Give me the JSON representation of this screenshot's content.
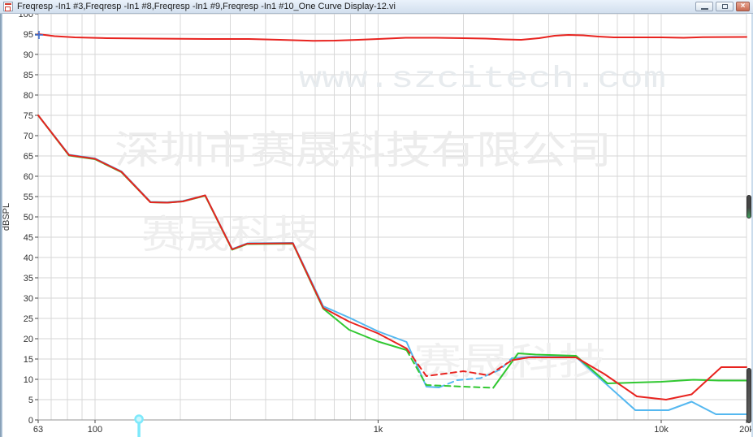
{
  "window": {
    "title": "Freqresp -In1 #3,Freqresp -In1 #8,Freqresp -In1 #9,Freqresp -In1 #10_One Curve Display-12.vi",
    "icon": "labview-vi-icon",
    "buttons": {
      "minimize": "minimize",
      "restore": "restore",
      "close": "close"
    }
  },
  "watermarks": {
    "url": "www.szcitech.com",
    "company": "深圳市赛晟科技有限公司",
    "brand_upper": "赛晟科技",
    "brand_lower": "赛晟科技"
  },
  "chart_data": {
    "type": "line",
    "title": "",
    "xlabel": "",
    "ylabel": "dBSPL",
    "x_scale": "log",
    "xlim": [
      63,
      20000
    ],
    "ylim": [
      0,
      100
    ],
    "y_tick_step": 5,
    "grid": true,
    "legend_position": "none",
    "x_ticks": [
      {
        "value": 63,
        "label": "63"
      },
      {
        "value": 100,
        "label": "100"
      },
      {
        "value": 1000,
        "label": "1k"
      },
      {
        "value": 10000,
        "label": "10k"
      },
      {
        "value": 20000,
        "label": "20k"
      }
    ],
    "cursor": {
      "freq": 143,
      "color": "#7ee9fb"
    },
    "start_marker": {
      "freq": 63,
      "db": 95,
      "color": "#3f6fd0"
    },
    "series": [
      {
        "name": "Freqresp -In1 #10",
        "color": "#55b8f0",
        "segments": [
          {
            "style": "solid",
            "points": [
              [
                63,
                75
              ],
              [
                81,
                65.3
              ],
              [
                100,
                64.4
              ],
              [
                124,
                61.2
              ],
              [
                157,
                53.7
              ],
              [
                180,
                53.6
              ],
              [
                204,
                53.9
              ],
              [
                245,
                55.3
              ],
              [
                305,
                42.1
              ],
              [
                345,
                43.5
              ],
              [
                500,
                43.6
              ],
              [
                640,
                28
              ],
              [
                790,
                25.2
              ],
              [
                1000,
                21.8
              ],
              [
                1260,
                19.2
              ],
              [
                1480,
                8.2
              ],
              [
                1640,
                8
              ]
            ]
          },
          {
            "style": "dashed",
            "points": [
              [
                1640,
                8
              ],
              [
                1900,
                9.8
              ],
              [
                2300,
                10.3
              ],
              [
                2700,
                12.4
              ],
              [
                2970,
                15.2
              ]
            ]
          },
          {
            "style": "solid",
            "points": [
              [
                2970,
                15.2
              ],
              [
                3500,
                15.6
              ],
              [
                5000,
                15.5
              ],
              [
                8100,
                2.4
              ],
              [
                10600,
                2.4
              ],
              [
                12800,
                4.5
              ],
              [
                15600,
                1.4
              ],
              [
                20000,
                1.4
              ]
            ]
          }
        ]
      },
      {
        "name": "Freqresp -In1 #9",
        "color": "#31c831",
        "segments": [
          {
            "style": "solid",
            "points": [
              [
                63,
                75
              ],
              [
                81,
                65.1
              ],
              [
                100,
                64.2
              ],
              [
                124,
                61
              ],
              [
                157,
                53.6
              ],
              [
                180,
                53.5
              ],
              [
                204,
                53.8
              ],
              [
                245,
                55.2
              ],
              [
                305,
                41.9
              ],
              [
                345,
                43.3
              ],
              [
                500,
                43.4
              ],
              [
                640,
                27.4
              ],
              [
                790,
                22.2
              ],
              [
                1000,
                19.3
              ],
              [
                1260,
                17.2
              ]
            ]
          },
          {
            "style": "dashed",
            "points": [
              [
                1260,
                17.2
              ],
              [
                1480,
                8.6
              ],
              [
                2000,
                8.2
              ],
              [
                2550,
                7.9
              ]
            ]
          },
          {
            "style": "solid",
            "points": [
              [
                2550,
                7.9
              ],
              [
                3120,
                16.4
              ],
              [
                3600,
                16.1
              ],
              [
                5000,
                15.8
              ],
              [
                6460,
                9
              ],
              [
                8000,
                9.2
              ],
              [
                10000,
                9.4
              ],
              [
                13000,
                9.9
              ],
              [
                16000,
                9.7
              ],
              [
                20000,
                9.7
              ]
            ]
          }
        ]
      },
      {
        "name": "Freqresp -In1 #8",
        "color": "#e8231f",
        "segments": [
          {
            "style": "solid",
            "points": [
              [
                63,
                75
              ],
              [
                81,
                65.2
              ],
              [
                100,
                64.3
              ],
              [
                124,
                61.1
              ],
              [
                157,
                53.6
              ],
              [
                180,
                53.5
              ],
              [
                204,
                53.8
              ],
              [
                245,
                55.3
              ],
              [
                305,
                42
              ],
              [
                345,
                43.4
              ],
              [
                500,
                43.5
              ],
              [
                640,
                27.6
              ],
              [
                790,
                24.2
              ],
              [
                1000,
                21.3
              ],
              [
                1260,
                17.6
              ]
            ]
          },
          {
            "style": "dashed",
            "points": [
              [
                1260,
                17.6
              ],
              [
                1480,
                10.8
              ],
              [
                2000,
                12
              ],
              [
                2450,
                11
              ],
              [
                2970,
                14.7
              ]
            ]
          },
          {
            "style": "solid",
            "points": [
              [
                2970,
                14.7
              ],
              [
                3400,
                15.4
              ],
              [
                5000,
                15.4
              ],
              [
                6300,
                11.3
              ],
              [
                8200,
                5.8
              ],
              [
                10400,
                5
              ],
              [
                12800,
                6.3
              ],
              [
                16300,
                13
              ],
              [
                20000,
                13
              ]
            ]
          }
        ]
      },
      {
        "name": "Freqresp -In1 #3",
        "color": "#e8231f",
        "segments": [
          {
            "style": "solid",
            "points": [
              [
                63,
                95
              ],
              [
                72,
                94.5
              ],
              [
                85,
                94.2
              ],
              [
                110,
                94
              ],
              [
                160,
                93.9
              ],
              [
                250,
                93.8
              ],
              [
                350,
                93.8
              ],
              [
                450,
                93.6
              ],
              [
                590,
                93.35
              ],
              [
                700,
                93.4
              ],
              [
                850,
                93.6
              ],
              [
                1000,
                93.8
              ],
              [
                1250,
                94.1
              ],
              [
                1600,
                94.1
              ],
              [
                2000,
                94
              ],
              [
                2400,
                93.9
              ],
              [
                2800,
                93.7
              ],
              [
                3200,
                93.6
              ],
              [
                3700,
                94
              ],
              [
                4200,
                94.6
              ],
              [
                4700,
                94.8
              ],
              [
                5300,
                94.7
              ],
              [
                6000,
                94.4
              ],
              [
                6800,
                94.2
              ],
              [
                10000,
                94.2
              ],
              [
                12000,
                94.1
              ],
              [
                14000,
                94.25
              ],
              [
                20000,
                94.3
              ]
            ]
          }
        ]
      }
    ]
  }
}
